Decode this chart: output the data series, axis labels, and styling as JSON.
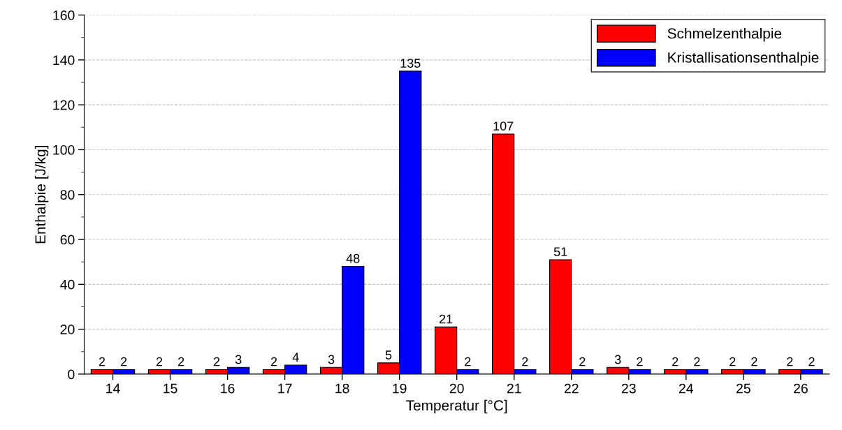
{
  "chart_data": {
    "type": "bar",
    "xlabel": "Temperatur [°C]",
    "ylabel": "Enthalpie [J/kg]",
    "categories": [
      "14",
      "15",
      "16",
      "17",
      "18",
      "19",
      "20",
      "21",
      "22",
      "23",
      "24",
      "25",
      "26"
    ],
    "series": [
      {
        "name": "Schmelzenthalpie",
        "color": "#ff0000",
        "values": [
          2,
          2,
          2,
          2,
          3,
          5,
          21,
          107,
          51,
          3,
          2,
          2,
          2
        ]
      },
      {
        "name": "Kristallisationsenthalpie",
        "color": "#0000ff",
        "values": [
          2,
          2,
          3,
          4,
          48,
          135,
          2,
          2,
          2,
          2,
          2,
          2,
          2
        ]
      }
    ],
    "ylim": [
      0,
      160
    ],
    "yticks": [
      0,
      20,
      40,
      60,
      80,
      100,
      120,
      140,
      160
    ],
    "grid": "y",
    "legend": "top right",
    "data_labels": true
  }
}
